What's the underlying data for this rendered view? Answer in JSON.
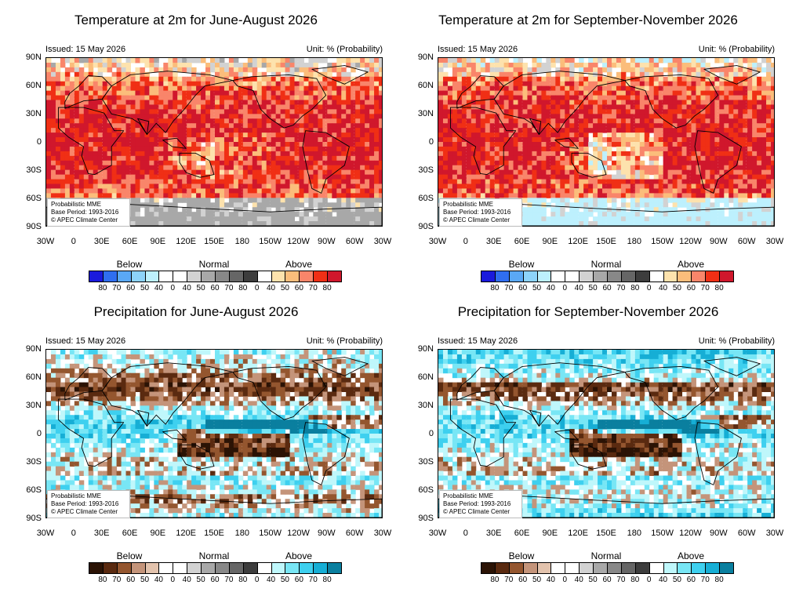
{
  "panels": [
    {
      "title": "Temperature at 2m for June-August 2026",
      "issued": "Issued: 15 May 2026",
      "unit": "Unit: % (Probability)",
      "variable": "temperature",
      "season": "JJA",
      "lat_labels": [
        "90N",
        "60N",
        "30N",
        "0",
        "30S",
        "60S",
        "90S"
      ],
      "lon_labels": [
        "30W",
        "0",
        "30E",
        "60E",
        "90E",
        "120E",
        "150E",
        "180",
        "150W",
        "120W",
        "90W",
        "60W",
        "30W"
      ],
      "info_lines": [
        "Probabilistic MME",
        "Base Period: 1993-2016",
        "© APEC Climate Center"
      ],
      "legend": {
        "group_labels": [
          "Below",
          "Normal",
          "Above"
        ],
        "colors": [
          "#1a1adc",
          "#2f6ef0",
          "#5aa8f5",
          "#8dd3fa",
          "#bdf0fd",
          "#ffffff",
          "#ffffff",
          "#d2d2d2",
          "#a8a8a8",
          "#888888",
          "#666666",
          "#3d3d3d",
          "#ffffff",
          "#fde2ad",
          "#fbbd7b",
          "#f9856a",
          "#f02f15",
          "#d0172c"
        ],
        "ticks": [
          "80",
          "70",
          "60",
          "50",
          "40",
          "0",
          "40",
          "50",
          "60",
          "70",
          "80",
          "0",
          "40",
          "50",
          "60",
          "70",
          "80"
        ]
      }
    },
    {
      "title": "Temperature at 2m for September-November 2026",
      "issued": "Issued: 15 May 2026",
      "unit": "Unit: % (Probability)",
      "variable": "temperature",
      "season": "SON",
      "lat_labels": [
        "90N",
        "60N",
        "30N",
        "0",
        "30S",
        "60S",
        "90S"
      ],
      "lon_labels": [
        "30W",
        "0",
        "30E",
        "60E",
        "90E",
        "120E",
        "150E",
        "180",
        "150W",
        "120W",
        "90W",
        "60W",
        "30W"
      ],
      "info_lines": [
        "Probabilistic MME",
        "Base Period: 1993-2016",
        "© APEC Climate Center"
      ],
      "legend": {
        "group_labels": [
          "Below",
          "Normal",
          "Above"
        ],
        "colors": [
          "#1a1adc",
          "#2f6ef0",
          "#5aa8f5",
          "#8dd3fa",
          "#bdf0fd",
          "#ffffff",
          "#ffffff",
          "#d2d2d2",
          "#a8a8a8",
          "#888888",
          "#666666",
          "#3d3d3d",
          "#ffffff",
          "#fde2ad",
          "#fbbd7b",
          "#f9856a",
          "#f02f15",
          "#d0172c"
        ],
        "ticks": [
          "80",
          "70",
          "60",
          "50",
          "40",
          "0",
          "40",
          "50",
          "60",
          "70",
          "80",
          "0",
          "40",
          "50",
          "60",
          "70",
          "80"
        ]
      }
    },
    {
      "title": "Precipitation for June-August 2026",
      "issued": "Issued: 15 May 2026",
      "unit": "Unit: % (Probability)",
      "variable": "precipitation",
      "season": "JJA",
      "lat_labels": [
        "90N",
        "60N",
        "30N",
        "0",
        "30S",
        "60S",
        "90S"
      ],
      "lon_labels": [
        "30W",
        "0",
        "30E",
        "60E",
        "90E",
        "120E",
        "150E",
        "180",
        "150W",
        "120W",
        "90W",
        "60W",
        "30W"
      ],
      "info_lines": [
        "Probabilistic MME",
        "Base Period: 1993-2016",
        "© APEC Climate Center"
      ],
      "legend": {
        "group_labels": [
          "Below",
          "Normal",
          "Above"
        ],
        "colors": [
          "#2b1305",
          "#5a2a10",
          "#94562f",
          "#c4947a",
          "#e3c3ad",
          "#ffffff",
          "#ffffff",
          "#d2d2d2",
          "#a8a8a8",
          "#888888",
          "#666666",
          "#3d3d3d",
          "#ffffff",
          "#bff7fb",
          "#78e6f5",
          "#3ed0ef",
          "#16aed5",
          "#0a7f9f"
        ],
        "ticks": [
          "80",
          "70",
          "60",
          "50",
          "40",
          "0",
          "40",
          "50",
          "60",
          "70",
          "80",
          "0",
          "40",
          "50",
          "60",
          "70",
          "80"
        ]
      }
    },
    {
      "title": "Precipitation for September-November 2026",
      "issued": "Issued: 15 May 2026",
      "unit": "Unit: % (Probability)",
      "variable": "precipitation",
      "season": "SON",
      "lat_labels": [
        "90N",
        "60N",
        "30N",
        "0",
        "30S",
        "60S",
        "90S"
      ],
      "lon_labels": [
        "30W",
        "0",
        "30E",
        "60E",
        "90E",
        "120E",
        "150E",
        "180",
        "150W",
        "120W",
        "90W",
        "60W",
        "30W"
      ],
      "info_lines": [
        "Probabilistic MME",
        "Base Period: 1993-2016",
        "© APEC Climate Center"
      ],
      "legend": {
        "group_labels": [
          "Below",
          "Normal",
          "Above"
        ],
        "colors": [
          "#2b1305",
          "#5a2a10",
          "#94562f",
          "#c4947a",
          "#e3c3ad",
          "#ffffff",
          "#ffffff",
          "#d2d2d2",
          "#a8a8a8",
          "#888888",
          "#666666",
          "#3d3d3d",
          "#ffffff",
          "#bff7fb",
          "#78e6f5",
          "#3ed0ef",
          "#16aed5",
          "#0a7f9f"
        ],
        "ticks": [
          "80",
          "70",
          "60",
          "50",
          "40",
          "0",
          "40",
          "50",
          "60",
          "70",
          "80",
          "0",
          "40",
          "50",
          "60",
          "70",
          "80"
        ]
      }
    }
  ]
}
